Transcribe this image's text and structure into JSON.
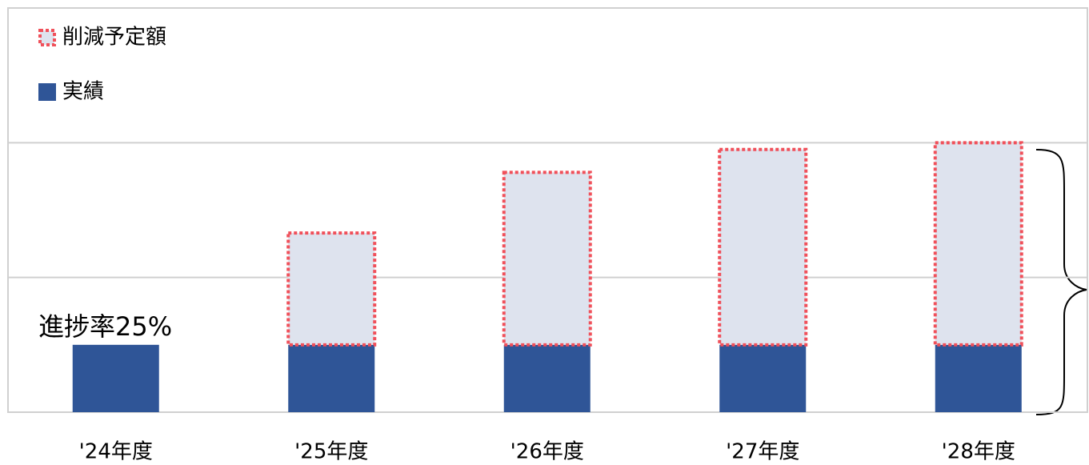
{
  "chart_data": {
    "type": "stacked_bar",
    "categories": [
      "'24年度",
      "'25年度",
      "'26年度",
      "'27年度",
      "'28年度"
    ],
    "series": [
      {
        "name": "実績",
        "color": "#2f5597",
        "values": [
          0.5,
          0.5,
          0.5,
          0.5,
          0.5
        ]
      },
      {
        "name": "削減予定額",
        "color": "#dee3ee",
        "edge_color": "#f0505a",
        "values": [
          null,
          0.83,
          1.28,
          1.45,
          1.5
        ]
      }
    ],
    "annotation": "進捗率25%",
    "ylim": [
      0,
      3
    ],
    "yticks": [
      0,
      1,
      2,
      3
    ],
    "grid": true,
    "legend": "top-left"
  }
}
